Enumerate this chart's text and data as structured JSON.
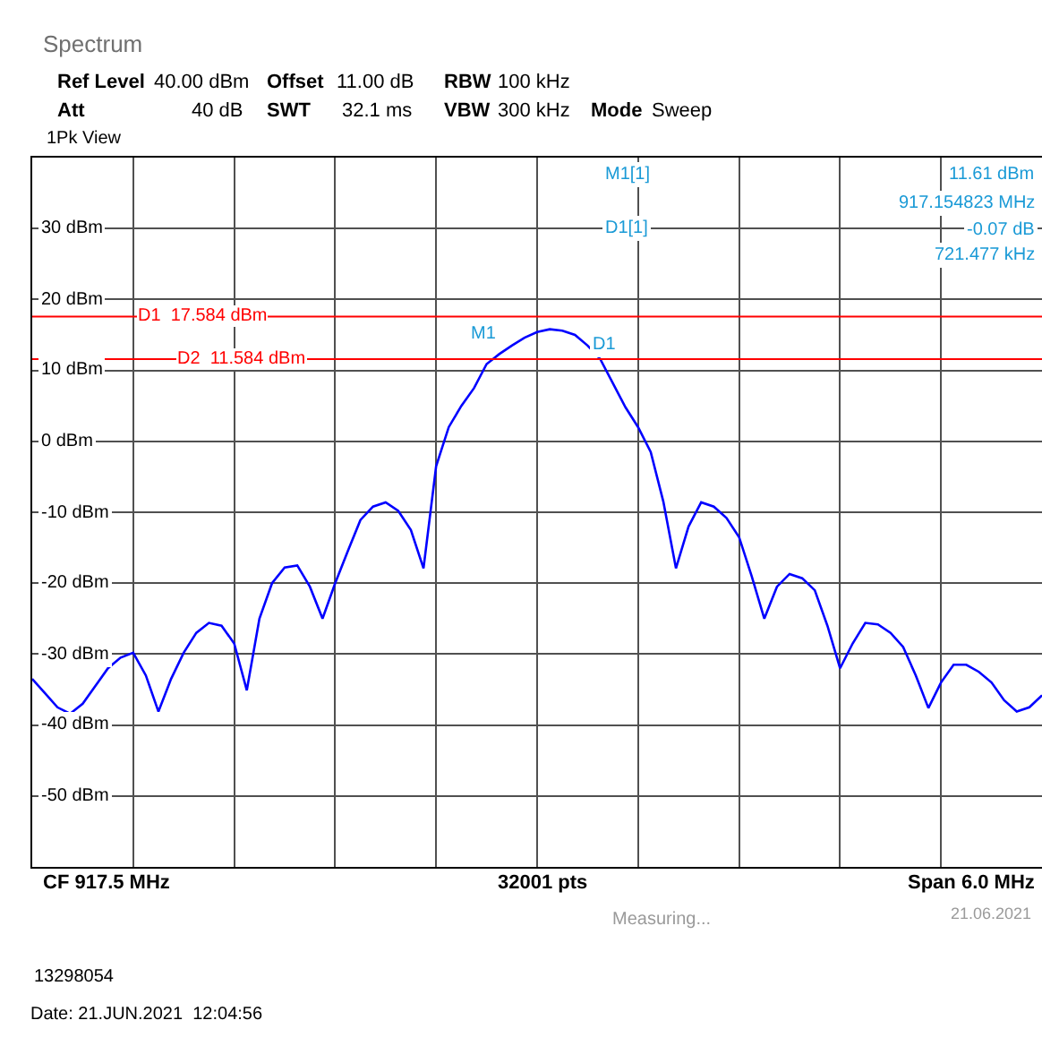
{
  "chart_data": {
    "type": "line",
    "annotations": [
      "Spectrum",
      "Ref Level",
      "40.00 dBm",
      "Offset",
      "11.00 dB",
      "RBW",
      "100 kHz",
      "Att",
      "40 dB",
      "SWT",
      "32.1 ms",
      "VBW",
      "300 kHz",
      "Mode",
      "Sweep",
      "1Pk View",
      "M1[1]",
      "11.61 dBm",
      "917.154823 MHz",
      "D1[1]",
      "-0.07 dB",
      "721.477 kHz",
      "CF 917.5 MHz",
      "32001 pts",
      "Span 6.0 MHz",
      "Measuring...",
      "21.06.2021",
      "13298054",
      "Date: 21.JUN.2021  12:04:56",
      "M1",
      "D1"
    ],
    "categories": [
      null,
      null,
      null,
      null,
      null,
      null,
      null,
      null,
      null,
      null,
      null,
      null,
      null,
      null,
      null,
      null,
      null,
      null,
      null,
      null,
      null,
      null,
      null,
      null,
      null,
      null,
      null,
      null,
      null,
      null,
      null,
      null,
      null,
      null,
      null,
      null,
      null,
      null,
      null,
      null,
      null,
      null,
      null,
      null,
      null,
      null,
      null,
      null,
      null,
      null,
      null,
      null,
      null,
      null,
      null,
      null,
      null,
      null,
      null,
      null,
      null,
      null,
      null,
      null,
      null,
      null,
      null,
      null,
      null,
      null,
      null,
      null,
      null,
      null,
      null,
      null,
      null,
      null,
      null,
      null,
      null
    ],
    "series": [
      {
        "color": "#0000ff",
        "values": [
          -33.5,
          -35.5,
          -37.5,
          -38.4,
          -37,
          -34.5,
          -32,
          -30.5,
          -29.8,
          -33,
          -38.1,
          -33.5,
          -29.8,
          -27,
          -25.6,
          -26,
          -28.5,
          -35.1,
          -25,
          -20,
          -17.8,
          -17.5,
          -20.5,
          -25,
          -20,
          -15.5,
          -11.1,
          -9.2,
          -8.6,
          -9.8,
          -12.5,
          -17.9,
          -3.5,
          2,
          5,
          7.5,
          10.9,
          12.3,
          13.5,
          14.6,
          15.4,
          15.8,
          15.6,
          15,
          13.5,
          11.6,
          8.2,
          4.8,
          2,
          -1.5,
          -8.5,
          -17.9,
          -12,
          -8.6,
          -9.2,
          -10.8,
          -13.5,
          -19,
          -25,
          -20.5,
          -18.7,
          -19.3,
          -21,
          -26,
          -32,
          -28.5,
          -25.6,
          -25.8,
          -27,
          -29,
          -33,
          -37.6,
          -34,
          -31.5,
          -31.5,
          -32.5,
          -34,
          -36.5,
          -38.1,
          -37.5,
          -35.8
        ]
      }
    ],
    "ylim": [
      -60,
      40
    ],
    "yticks": [
      {
        "value": 30,
        "label": "30 dBm"
      },
      {
        "value": 20,
        "label": "20 dBm"
      },
      {
        "value": 10,
        "label": "10 dBm"
      },
      {
        "value": 0,
        "label": "0 dBm"
      },
      {
        "value": -10,
        "label": "-10 dBm"
      },
      {
        "value": -20,
        "label": "-20 dBm"
      },
      {
        "value": -30,
        "label": "-30 dBm"
      },
      {
        "value": -40,
        "label": "-40 dBm"
      },
      {
        "value": -50,
        "label": "-50 dBm"
      }
    ],
    "tick_labels": "y",
    "grid": true,
    "marker": "none",
    "line_style": "solid",
    "ref_lines": [
      {
        "axis": "y",
        "value": 17.584,
        "label": "D1  17.584 dBm",
        "color": "#ff0000"
      },
      {
        "axis": "y",
        "value": 11.584,
        "label": "D2  11.584 dBm",
        "color": "#ff0000"
      }
    ]
  }
}
